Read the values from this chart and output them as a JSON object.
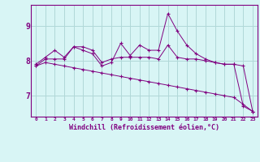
{
  "x": [
    0,
    1,
    2,
    3,
    4,
    5,
    6,
    7,
    8,
    9,
    10,
    11,
    12,
    13,
    14,
    15,
    16,
    17,
    18,
    19,
    20,
    21,
    22,
    23
  ],
  "line1": [
    7.9,
    8.1,
    8.3,
    8.1,
    8.4,
    8.4,
    8.3,
    7.95,
    8.05,
    8.1,
    8.1,
    8.1,
    8.1,
    8.05,
    8.45,
    8.1,
    8.05,
    8.05,
    8.0,
    7.95,
    7.9,
    7.9,
    7.85,
    6.55
  ],
  "line2": [
    7.85,
    8.05,
    8.05,
    8.05,
    8.4,
    8.3,
    8.2,
    7.85,
    7.95,
    8.5,
    8.15,
    8.45,
    8.3,
    8.3,
    9.35,
    8.85,
    8.45,
    8.2,
    8.05,
    7.95,
    7.9,
    7.9,
    6.7,
    6.55
  ],
  "line3": [
    7.85,
    7.95,
    7.9,
    7.85,
    7.8,
    7.75,
    7.7,
    7.65,
    7.6,
    7.55,
    7.5,
    7.45,
    7.4,
    7.35,
    7.3,
    7.25,
    7.2,
    7.15,
    7.1,
    7.05,
    7.0,
    6.95,
    6.75,
    6.55
  ],
  "bg_color": "#d8f5f5",
  "grid_color": "#b0d8d8",
  "ylim": [
    6.4,
    9.6
  ],
  "yticks": [
    7,
    8,
    9
  ],
  "xlabel": "Windchill (Refroidissement éolien,°C)",
  "xtick_labels": [
    "0",
    "1",
    "2",
    "3",
    "4",
    "5",
    "6",
    "7",
    "8",
    "9",
    "10",
    "11",
    "12",
    "13",
    "14",
    "15",
    "16",
    "17",
    "18",
    "19",
    "20",
    "21",
    "22",
    "23"
  ],
  "line_color": "#800080",
  "marker": "+"
}
